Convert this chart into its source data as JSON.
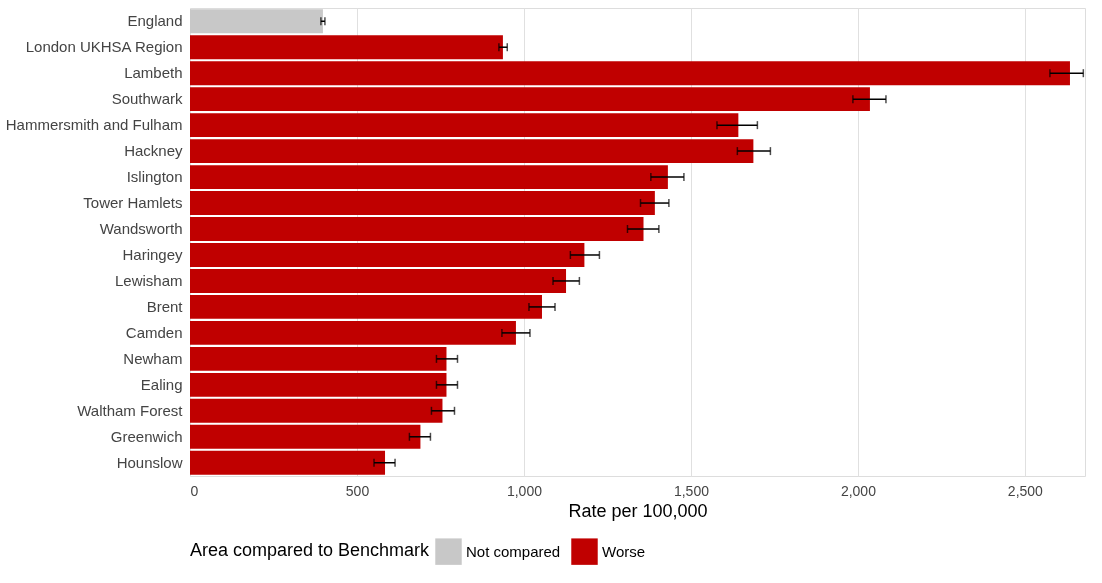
{
  "chart_data": {
    "type": "bar",
    "orientation": "horizontal",
    "xlabel": "Rate per 100,000",
    "legend_title": "Area compared to Benchmark",
    "legend": "bottom",
    "grid": "x",
    "categories": [
      "England",
      "London UKHSA Region",
      "Lambeth",
      "Southwark",
      "Hammersmith and Fulham",
      "Hackney",
      "Islington",
      "Tower Hamlets",
      "Wandsworth",
      "Haringey",
      "Lewisham",
      "Brent",
      "Camden",
      "Newham",
      "Ealing",
      "Waltham Forest",
      "Greenwich",
      "Hounslow"
    ],
    "xlim": [
      0,
      2680
    ],
    "xticks": [
      0,
      {
        "value": 500,
        "label": "500"
      },
      {
        "value": 1000,
        "label": "1,000"
      },
      {
        "value": 1500,
        "label": "1,500"
      },
      {
        "value": 2000,
        "label": "2,000"
      },
      {
        "value": 2500,
        "label": "2,500"
      }
    ],
    "series": [
      {
        "name": "Not compared",
        "color": "#c8c8c8",
        "values": [
          398,
          null,
          null,
          null,
          null,
          null,
          null,
          null,
          null,
          null,
          null,
          null,
          null,
          null,
          null,
          null,
          null,
          null
        ],
        "errors": [
          [
            392,
            404
          ],
          null,
          null,
          null,
          null,
          null,
          null,
          null,
          null,
          null,
          null,
          null,
          null,
          null,
          null,
          null,
          null,
          null
        ]
      },
      {
        "name": "Worse",
        "color": "#c00000",
        "values": [
          null,
          937,
          2635,
          2036,
          1642,
          1687,
          1431,
          1392,
          1358,
          1181,
          1126,
          1054,
          976,
          768,
          768,
          756,
          690,
          584
        ],
        "errors": [
          null,
          [
            925,
            950
          ],
          [
            2575,
            2675
          ],
          [
            1985,
            2084
          ],
          [
            1578,
            1699
          ],
          [
            1639,
            1738
          ],
          [
            1380,
            1479
          ],
          [
            1349,
            1434
          ],
          [
            1310,
            1404
          ],
          [
            1139,
            1226
          ],
          [
            1087,
            1166
          ],
          [
            1015,
            1093
          ],
          [
            934,
            1018
          ],
          [
            738,
            801
          ],
          [
            738,
            801
          ],
          [
            723,
            792
          ],
          [
            657,
            720
          ],
          [
            551,
            614
          ]
        ]
      }
    ]
  }
}
